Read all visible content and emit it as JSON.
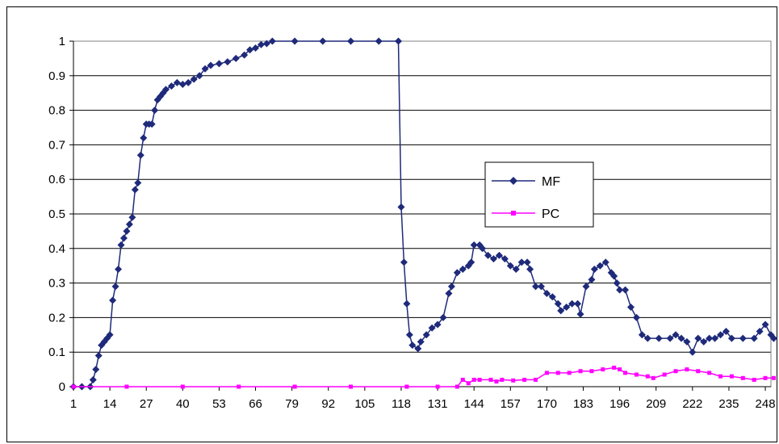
{
  "chart_data": {
    "type": "line",
    "title": "",
    "xlabel": "",
    "ylabel": "",
    "ylim": [
      0,
      1
    ],
    "xlim": [
      1,
      250
    ],
    "grid": true,
    "legend_position": "center-right",
    "y_ticks": [
      "0",
      "0.1",
      "0.2",
      "0.3",
      "0.4",
      "0.5",
      "0.6",
      "0.7",
      "0.8",
      "0.9",
      "1"
    ],
    "x_ticks": [
      "1",
      "14",
      "27",
      "40",
      "53",
      "66",
      "79",
      "92",
      "105",
      "118",
      "131",
      "144",
      "157",
      "170",
      "183",
      "196",
      "209",
      "222",
      "235",
      "248"
    ],
    "colors": {
      "MF": "#1f2a7a",
      "PC": "#ff00ff"
    },
    "series": [
      {
        "name": "MF",
        "marker": "diamond",
        "points": [
          [
            1,
            0
          ],
          [
            4,
            0
          ],
          [
            7,
            0
          ],
          [
            8,
            0.02
          ],
          [
            9,
            0.05
          ],
          [
            10,
            0.09
          ],
          [
            11,
            0.12
          ],
          [
            12,
            0.13
          ],
          [
            13,
            0.14
          ],
          [
            14,
            0.15
          ],
          [
            15,
            0.25
          ],
          [
            16,
            0.29
          ],
          [
            17,
            0.34
          ],
          [
            18,
            0.41
          ],
          [
            19,
            0.43
          ],
          [
            20,
            0.45
          ],
          [
            21,
            0.47
          ],
          [
            22,
            0.49
          ],
          [
            23,
            0.57
          ],
          [
            24,
            0.59
          ],
          [
            25,
            0.67
          ],
          [
            26,
            0.72
          ],
          [
            27,
            0.76
          ],
          [
            28,
            0.76
          ],
          [
            29,
            0.76
          ],
          [
            30,
            0.8
          ],
          [
            31,
            0.83
          ],
          [
            32,
            0.84
          ],
          [
            33,
            0.85
          ],
          [
            34,
            0.86
          ],
          [
            36,
            0.87
          ],
          [
            38,
            0.88
          ],
          [
            40,
            0.875
          ],
          [
            42,
            0.88
          ],
          [
            44,
            0.89
          ],
          [
            46,
            0.9
          ],
          [
            48,
            0.92
          ],
          [
            50,
            0.93
          ],
          [
            53,
            0.935
          ],
          [
            56,
            0.94
          ],
          [
            59,
            0.95
          ],
          [
            62,
            0.96
          ],
          [
            64,
            0.975
          ],
          [
            66,
            0.98
          ],
          [
            68,
            0.99
          ],
          [
            70,
            0.993
          ],
          [
            72,
            1
          ],
          [
            80,
            1
          ],
          [
            90,
            1
          ],
          [
            100,
            1
          ],
          [
            110,
            1
          ],
          [
            117,
            1
          ],
          [
            118,
            0.52
          ],
          [
            119,
            0.36
          ],
          [
            120,
            0.24
          ],
          [
            121,
            0.15
          ],
          [
            122,
            0.12
          ],
          [
            124,
            0.11
          ],
          [
            125,
            0.13
          ],
          [
            127,
            0.15
          ],
          [
            129,
            0.17
          ],
          [
            131,
            0.18
          ],
          [
            133,
            0.2
          ],
          [
            135,
            0.27
          ],
          [
            136,
            0.29
          ],
          [
            138,
            0.33
          ],
          [
            140,
            0.34
          ],
          [
            142,
            0.35
          ],
          [
            143,
            0.36
          ],
          [
            144,
            0.41
          ],
          [
            146,
            0.41
          ],
          [
            147,
            0.4
          ],
          [
            149,
            0.38
          ],
          [
            151,
            0.37
          ],
          [
            153,
            0.38
          ],
          [
            155,
            0.37
          ],
          [
            157,
            0.35
          ],
          [
            159,
            0.34
          ],
          [
            161,
            0.36
          ],
          [
            163,
            0.36
          ],
          [
            164,
            0.34
          ],
          [
            166,
            0.29
          ],
          [
            168,
            0.29
          ],
          [
            170,
            0.27
          ],
          [
            172,
            0.26
          ],
          [
            174,
            0.24
          ],
          [
            175,
            0.22
          ],
          [
            177,
            0.23
          ],
          [
            179,
            0.24
          ],
          [
            181,
            0.24
          ],
          [
            182,
            0.21
          ],
          [
            184,
            0.29
          ],
          [
            186,
            0.31
          ],
          [
            187,
            0.34
          ],
          [
            189,
            0.35
          ],
          [
            191,
            0.36
          ],
          [
            193,
            0.33
          ],
          [
            194,
            0.32
          ],
          [
            195,
            0.3
          ],
          [
            196,
            0.28
          ],
          [
            198,
            0.28
          ],
          [
            200,
            0.23
          ],
          [
            202,
            0.2
          ],
          [
            204,
            0.15
          ],
          [
            206,
            0.14
          ],
          [
            210,
            0.14
          ],
          [
            214,
            0.14
          ],
          [
            216,
            0.15
          ],
          [
            218,
            0.14
          ],
          [
            220,
            0.13
          ],
          [
            222,
            0.1
          ],
          [
            224,
            0.14
          ],
          [
            226,
            0.13
          ],
          [
            228,
            0.14
          ],
          [
            230,
            0.14
          ],
          [
            232,
            0.15
          ],
          [
            234,
            0.16
          ],
          [
            236,
            0.14
          ],
          [
            240,
            0.14
          ],
          [
            244,
            0.14
          ],
          [
            246,
            0.16
          ],
          [
            248,
            0.18
          ],
          [
            250,
            0.15
          ],
          [
            251,
            0.14
          ]
        ]
      },
      {
        "name": "PC",
        "marker": "square",
        "points": [
          [
            1,
            0
          ],
          [
            20,
            0
          ],
          [
            40,
            0
          ],
          [
            60,
            0
          ],
          [
            80,
            0
          ],
          [
            100,
            0
          ],
          [
            120,
            0
          ],
          [
            131,
            0
          ],
          [
            138,
            0
          ],
          [
            140,
            0.02
          ],
          [
            142,
            0.01
          ],
          [
            144,
            0.02
          ],
          [
            146,
            0.02
          ],
          [
            150,
            0.02
          ],
          [
            152,
            0.015
          ],
          [
            154,
            0.02
          ],
          [
            158,
            0.018
          ],
          [
            162,
            0.02
          ],
          [
            166,
            0.02
          ],
          [
            170,
            0.04
          ],
          [
            174,
            0.04
          ],
          [
            178,
            0.04
          ],
          [
            182,
            0.045
          ],
          [
            186,
            0.045
          ],
          [
            190,
            0.05
          ],
          [
            194,
            0.055
          ],
          [
            196,
            0.05
          ],
          [
            198,
            0.04
          ],
          [
            202,
            0.035
          ],
          [
            206,
            0.03
          ],
          [
            208,
            0.025
          ],
          [
            212,
            0.035
          ],
          [
            216,
            0.045
          ],
          [
            220,
            0.05
          ],
          [
            224,
            0.045
          ],
          [
            228,
            0.04
          ],
          [
            232,
            0.03
          ],
          [
            236,
            0.03
          ],
          [
            240,
            0.025
          ],
          [
            244,
            0.02
          ],
          [
            248,
            0.025
          ],
          [
            251,
            0.025
          ]
        ]
      }
    ]
  }
}
